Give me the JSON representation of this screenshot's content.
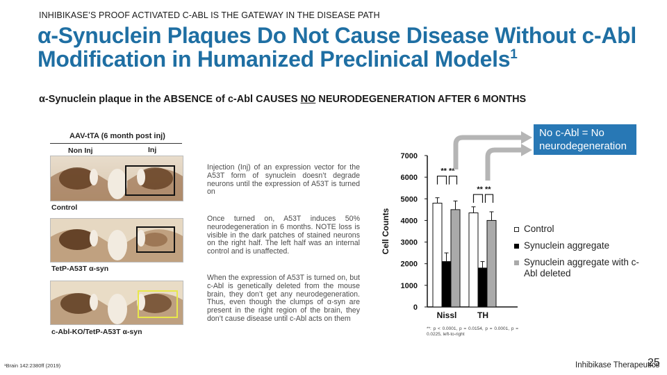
{
  "header": {
    "kicker": "INHIBIKASE’S PROOF ACTIVATED C-ABL IS THE GATEWAY IN THE DISEASE PATH",
    "title_line1": "α-Synuclein Plaques Do Not Cause Disease Without c-Abl",
    "title_line2": "Modification in Humanized Preclinical Models",
    "title_sup": "1"
  },
  "subtitle": {
    "before": "α-Synuclein plaque in the ABSENCE of c-Abl CAUSES ",
    "emph": "NO",
    "after": " NEURODEGENERATION AFTER 6 MONTHS"
  },
  "panel": {
    "header": "AAV-tTA (6 month post inj)",
    "col_left": "Non Inj",
    "col_right": "Inj",
    "rows": [
      {
        "label": "Control",
        "desc": "Injection (Inj) of an expression vector for the A53T form of synuclein doesn’t degrade neurons until the expression of A53T is turned on"
      },
      {
        "label": "TetP-A53T α-syn",
        "desc": "Once turned on, A53T induces 50% neurodegeneration in 6 months. NOTE loss is visible in the dark patches of stained neurons on the right half.  The left half was an internal control and is unaffected."
      },
      {
        "label": "c-Abl-KO/TetP-A53T α-syn",
        "desc": "When the expression of A53T is turned on, but c-Abl is genetically deleted from the mouse brain, they don’t get any neurodegeneration.  Thus, even though the clumps of α-syn are present in the right region of the brain, they don’t cause disease until c-Abl acts on them"
      }
    ]
  },
  "callout": {
    "text": "No c-Abl = No neurodegeneration",
    "color": "#2878b5"
  },
  "legend": [
    {
      "label": "Control"
    },
    {
      "label": "Synuclein aggregate"
    },
    {
      "label": "Synuclein aggregate with c-Abl deleted"
    }
  ],
  "chart_data": {
    "type": "bar",
    "categories": [
      "Nissl",
      "TH"
    ],
    "ylabel": "Cell Counts",
    "ylim": [
      0,
      7000
    ],
    "yticks": [
      "0",
      "1000",
      "2000",
      "3000",
      "4000",
      "5000",
      "6000",
      "7000"
    ],
    "series": [
      {
        "name": "Control",
        "values": [
          4800,
          4350
        ],
        "errors": [
          250,
          280
        ],
        "color": "#ffffff"
      },
      {
        "name": "Synuclein aggregate",
        "values": [
          2100,
          1800
        ],
        "errors": [
          400,
          300
        ],
        "color": "#000000"
      },
      {
        "name": "Synuclein aggregate with c-Abl deleted",
        "values": [
          4500,
          4000
        ],
        "errors": [
          400,
          400
        ],
        "color": "#aaaaaa"
      }
    ],
    "significance": [
      "** **",
      "** **"
    ],
    "footnote": "**:  p  <  0.0001,  p  =  0.0154,  p  =  0.0001, p = 0.0225, left-to-right"
  },
  "footer": {
    "reference": "¹Brain 142:2380ff (2019)",
    "brand": "Inhibikase Therapeutics",
    "page": "25"
  }
}
